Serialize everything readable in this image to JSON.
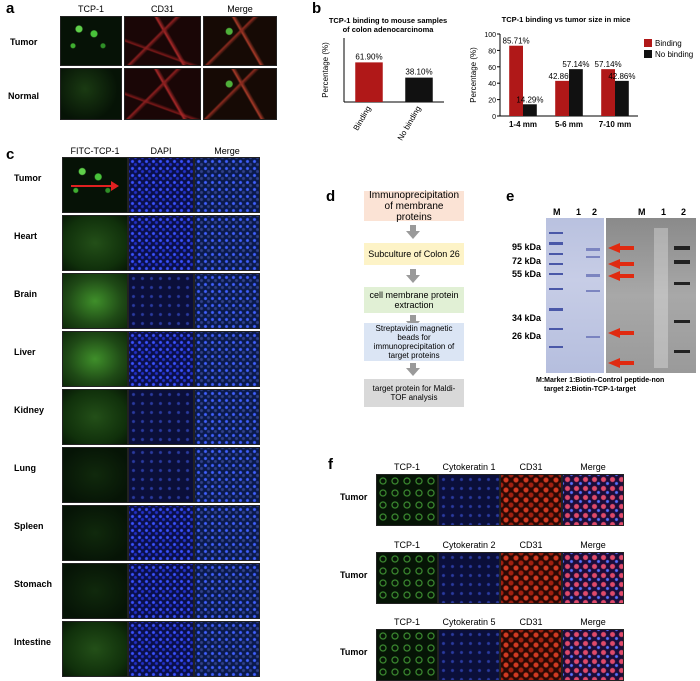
{
  "panels": {
    "a": {
      "label": "a",
      "columns": [
        "TCP-1",
        "CD31",
        "Merge"
      ],
      "rows": [
        "Tumor",
        "Normal"
      ]
    },
    "b": {
      "label": "b"
    },
    "c": {
      "label": "c",
      "columns": [
        "FITC-TCP-1",
        "DAPI",
        "Merge"
      ],
      "rows": [
        "Tumor",
        "Heart",
        "Brain",
        "Liver",
        "Kidney",
        "Lung",
        "Spleen",
        "Stomach",
        "Intestine"
      ]
    },
    "d": {
      "label": "d",
      "steps": [
        "Immunoprecipitation of membrane proteins",
        "Subculture of Colon 26",
        "cell membrane protein extraction",
        "Streptavidin magnetic beads for immunoprecipitation of target proteins",
        "target protein for Maldi-TOF analysis"
      ]
    },
    "e": {
      "label": "e",
      "lanes_left": [
        "M",
        "1",
        "2"
      ],
      "lanes_right": [
        "M",
        "1",
        "2"
      ],
      "markers": [
        "95 kDa",
        "72 kDa",
        "55 kDa",
        "34 kDa",
        "26 kDa"
      ],
      "caption_line1": "M:Marker   1:Biotin-Control peptide-non",
      "caption_line2": "target   2:Biotin-TCP-1-target"
    },
    "f": {
      "label": "f",
      "blocks": [
        {
          "cols": [
            "TCP-1",
            "Cytokeratin 1",
            "CD31",
            "Merge"
          ],
          "row": "Tumor"
        },
        {
          "cols": [
            "TCP-1",
            "Cytokeratin 2",
            "CD31",
            "Merge"
          ],
          "row": "Tumor"
        },
        {
          "cols": [
            "TCP-1",
            "Cytokeratin 5",
            "CD31",
            "Merge"
          ],
          "row": "Tumor"
        }
      ]
    }
  },
  "chart_data": [
    {
      "type": "bar",
      "title": "TCP-1 binding to mouse samples of colon adenocarcinoma",
      "ylabel": "Percentage (%)",
      "xlabel": "",
      "categories": [
        "Binding",
        "No binding"
      ],
      "values": [
        61.9,
        38.1
      ],
      "value_labels": [
        "61.90%",
        "38.10%"
      ],
      "colors": [
        "#b01818",
        "#111111"
      ],
      "ylim": [
        0,
        100
      ],
      "yticks": []
    },
    {
      "type": "bar",
      "title": "TCP-1 binding vs tumor size in mice",
      "ylabel": "Percentage (%)",
      "xlabel": "",
      "categories": [
        "1-4 mm",
        "5-6 mm",
        "7-10 mm"
      ],
      "series": [
        {
          "name": "Binding",
          "values": [
            85.71,
            42.86,
            57.14
          ],
          "labels": [
            "85.71%",
            "42.86%",
            "57.14%"
          ],
          "color": "#b01818"
        },
        {
          "name": "No binding",
          "values": [
            14.29,
            57.14,
            42.86
          ],
          "labels": [
            "14.29%",
            "57.14%",
            "42.86%"
          ],
          "color": "#111111"
        }
      ],
      "ylim": [
        0,
        100
      ],
      "yticks": [
        "0",
        "20",
        "40",
        "60",
        "80",
        "100"
      ],
      "legend_position": "top-right"
    }
  ]
}
